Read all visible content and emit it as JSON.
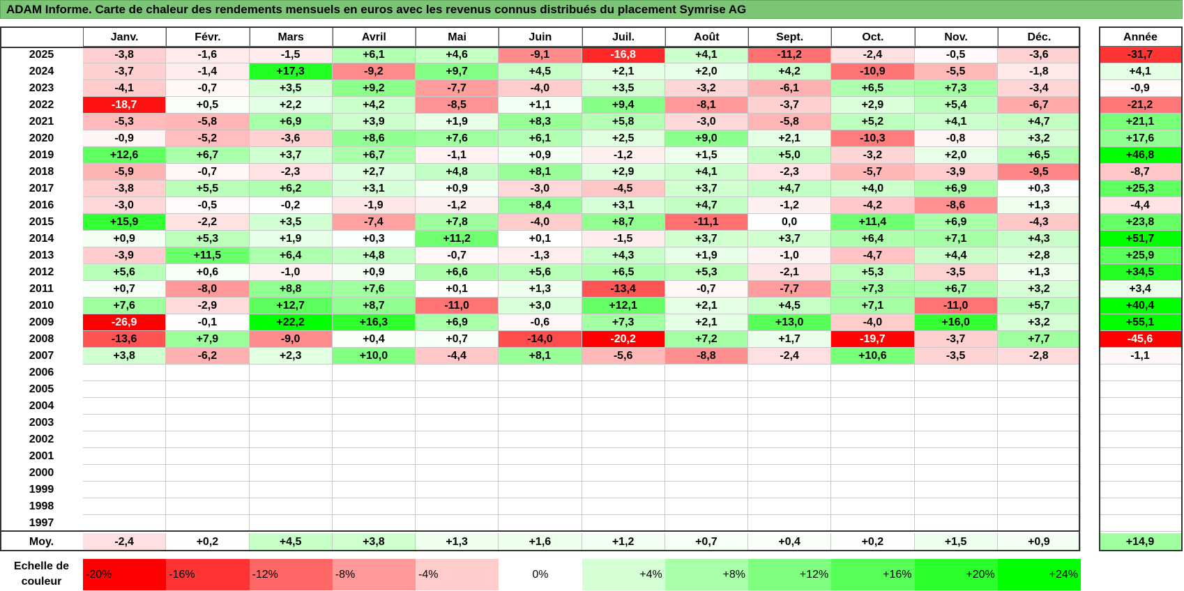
{
  "title": "ADAM Informe. Carte de chaleur des rendements mensuels en euros avec les revenus connus distribués du placement Symrise AG",
  "chart_data": {
    "type": "heatmap",
    "title": "ADAM Informe. Carte de chaleur des rendements mensuels en euros avec les revenus connus distribués du placement Symrise AG",
    "months": [
      "Janv.",
      "Févr.",
      "Mars",
      "Avril",
      "Mai",
      "Juin",
      "Juil.",
      "Août",
      "Sept.",
      "Oct.",
      "Nov.",
      "Déc."
    ],
    "year_header": "Année",
    "rows": [
      {
        "year": "2025",
        "values": [
          -3.8,
          -1.6,
          -1.5,
          6.1,
          4.6,
          -9.1,
          -16.8,
          4.1,
          -11.2,
          -2.4,
          -0.5,
          -3.6
        ],
        "annual": -31.7
      },
      {
        "year": "2024",
        "values": [
          -3.7,
          -1.4,
          17.3,
          -9.2,
          9.7,
          4.5,
          2.1,
          2.0,
          4.2,
          -10.9,
          -5.5,
          -1.8
        ],
        "annual": 4.1
      },
      {
        "year": "2023",
        "values": [
          -4.1,
          -0.7,
          3.5,
          9.2,
          -7.7,
          -4.0,
          3.5,
          -3.2,
          -6.1,
          6.5,
          7.3,
          -3.4
        ],
        "annual": -0.9
      },
      {
        "year": "2022",
        "values": [
          -18.7,
          0.5,
          2.2,
          4.2,
          -8.5,
          1.1,
          9.4,
          -8.1,
          -3.7,
          2.9,
          5.4,
          -6.7
        ],
        "annual": -21.2
      },
      {
        "year": "2021",
        "values": [
          -5.3,
          -5.8,
          6.9,
          3.9,
          1.9,
          8.3,
          5.8,
          -3.0,
          -5.8,
          5.2,
          4.1,
          4.7
        ],
        "annual": 21.1
      },
      {
        "year": "2020",
        "values": [
          -0.9,
          -5.2,
          -3.6,
          8.6,
          7.6,
          6.1,
          2.5,
          9.0,
          2.1,
          -10.3,
          -0.8,
          3.2
        ],
        "annual": 17.6
      },
      {
        "year": "2019",
        "values": [
          12.6,
          6.7,
          3.7,
          6.7,
          -1.1,
          0.9,
          -1.2,
          1.5,
          5.0,
          -3.2,
          2.0,
          6.5
        ],
        "annual": 46.8
      },
      {
        "year": "2018",
        "values": [
          -5.9,
          -0.7,
          -2.3,
          2.7,
          4.8,
          8.1,
          2.9,
          4.1,
          -2.3,
          -5.7,
          -3.9,
          -9.5
        ],
        "annual": -8.7
      },
      {
        "year": "2017",
        "values": [
          -3.8,
          5.5,
          6.2,
          3.1,
          0.9,
          -3.0,
          -4.5,
          3.7,
          4.7,
          4.0,
          6.9,
          0.3
        ],
        "annual": 25.3
      },
      {
        "year": "2016",
        "values": [
          -3.0,
          -0.5,
          -0.2,
          -1.9,
          -1.2,
          8.4,
          3.1,
          4.7,
          -1.2,
          -4.2,
          -8.6,
          1.3
        ],
        "annual": -4.4
      },
      {
        "year": "2015",
        "values": [
          15.9,
          -2.2,
          3.5,
          -7.4,
          7.8,
          -4.0,
          8.7,
          -11.1,
          0.0,
          11.4,
          6.9,
          -4.3
        ],
        "annual": 23.8
      },
      {
        "year": "2014",
        "values": [
          0.9,
          5.3,
          1.9,
          0.3,
          11.2,
          0.1,
          -1.5,
          3.7,
          3.7,
          6.4,
          7.1,
          4.3
        ],
        "annual": 51.7
      },
      {
        "year": "2013",
        "values": [
          -3.9,
          11.5,
          6.4,
          4.8,
          -0.7,
          -1.3,
          4.3,
          1.9,
          -1.0,
          -4.7,
          4.4,
          2.8
        ],
        "annual": 25.9
      },
      {
        "year": "2012",
        "values": [
          5.6,
          0.6,
          -1.0,
          0.9,
          6.6,
          5.6,
          6.5,
          5.3,
          -2.1,
          5.3,
          -3.5,
          1.3
        ],
        "annual": 34.5
      },
      {
        "year": "2011",
        "values": [
          0.7,
          -8.0,
          8.8,
          7.6,
          0.1,
          1.3,
          -13.4,
          -0.7,
          -7.7,
          7.3,
          6.7,
          3.2
        ],
        "annual": 3.4
      },
      {
        "year": "2010",
        "values": [
          7.6,
          -2.9,
          12.7,
          8.7,
          -11.0,
          3.0,
          12.1,
          2.1,
          4.5,
          7.1,
          -11.0,
          5.7
        ],
        "annual": 40.4
      },
      {
        "year": "2009",
        "values": [
          -26.9,
          -0.1,
          22.2,
          16.3,
          6.9,
          -0.6,
          7.3,
          2.1,
          13.0,
          -4.0,
          16.0,
          3.2
        ],
        "annual": 55.1
      },
      {
        "year": "2008",
        "values": [
          -13.6,
          7.9,
          -9.0,
          0.4,
          0.7,
          -14.0,
          -20.2,
          7.2,
          1.7,
          -19.7,
          -3.7,
          7.7
        ],
        "annual": -45.6
      },
      {
        "year": "2007",
        "values": [
          3.8,
          -6.2,
          2.3,
          10.0,
          -4.4,
          8.1,
          -5.6,
          -8.8,
          -2.4,
          10.6,
          -3.5,
          -2.8
        ],
        "annual": -1.1
      },
      {
        "year": "2006",
        "values": [
          null,
          null,
          null,
          null,
          null,
          null,
          null,
          null,
          null,
          null,
          null,
          null
        ],
        "annual": null
      },
      {
        "year": "2005",
        "values": [
          null,
          null,
          null,
          null,
          null,
          null,
          null,
          null,
          null,
          null,
          null,
          null
        ],
        "annual": null
      },
      {
        "year": "2004",
        "values": [
          null,
          null,
          null,
          null,
          null,
          null,
          null,
          null,
          null,
          null,
          null,
          null
        ],
        "annual": null
      },
      {
        "year": "2003",
        "values": [
          null,
          null,
          null,
          null,
          null,
          null,
          null,
          null,
          null,
          null,
          null,
          null
        ],
        "annual": null
      },
      {
        "year": "2002",
        "values": [
          null,
          null,
          null,
          null,
          null,
          null,
          null,
          null,
          null,
          null,
          null,
          null
        ],
        "annual": null
      },
      {
        "year": "2001",
        "values": [
          null,
          null,
          null,
          null,
          null,
          null,
          null,
          null,
          null,
          null,
          null,
          null
        ],
        "annual": null
      },
      {
        "year": "2000",
        "values": [
          null,
          null,
          null,
          null,
          null,
          null,
          null,
          null,
          null,
          null,
          null,
          null
        ],
        "annual": null
      },
      {
        "year": "1999",
        "values": [
          null,
          null,
          null,
          null,
          null,
          null,
          null,
          null,
          null,
          null,
          null,
          null
        ],
        "annual": null
      },
      {
        "year": "1998",
        "values": [
          null,
          null,
          null,
          null,
          null,
          null,
          null,
          null,
          null,
          null,
          null,
          null
        ],
        "annual": null
      },
      {
        "year": "1997",
        "values": [
          null,
          null,
          null,
          null,
          null,
          null,
          null,
          null,
          null,
          null,
          null,
          null
        ],
        "annual": null
      }
    ],
    "average_row": {
      "label": "Moy.",
      "values": [
        -2.4,
        0.2,
        4.5,
        3.8,
        1.3,
        1.6,
        1.2,
        0.7,
        0.4,
        0.2,
        1.5,
        0.9
      ],
      "annual": 14.9
    },
    "color_scale": {
      "label": "Echelle de couleur",
      "stops": [
        {
          "label": "-20%",
          "value": -20,
          "color": "#ff0000"
        },
        {
          "label": "-16%",
          "value": -16,
          "color": "#ff3333"
        },
        {
          "label": "-12%",
          "value": -12,
          "color": "#ff6666"
        },
        {
          "label": "-8%",
          "value": -8,
          "color": "#ff9999"
        },
        {
          "label": "-4%",
          "value": -4,
          "color": "#ffcccc"
        },
        {
          "label": "0%",
          "value": 0,
          "color": "#ffffff"
        },
        {
          "label": "+4%",
          "value": 4,
          "color": "#d4ffd4"
        },
        {
          "label": "+8%",
          "value": 8,
          "color": "#aaffaa"
        },
        {
          "label": "+12%",
          "value": 12,
          "color": "#7fff7f"
        },
        {
          "label": "+16%",
          "value": 16,
          "color": "#55ff55"
        },
        {
          "label": "+20%",
          "value": 20,
          "color": "#2aff2a"
        },
        {
          "label": "+24%",
          "value": 24,
          "color": "#00ff00"
        }
      ]
    }
  }
}
